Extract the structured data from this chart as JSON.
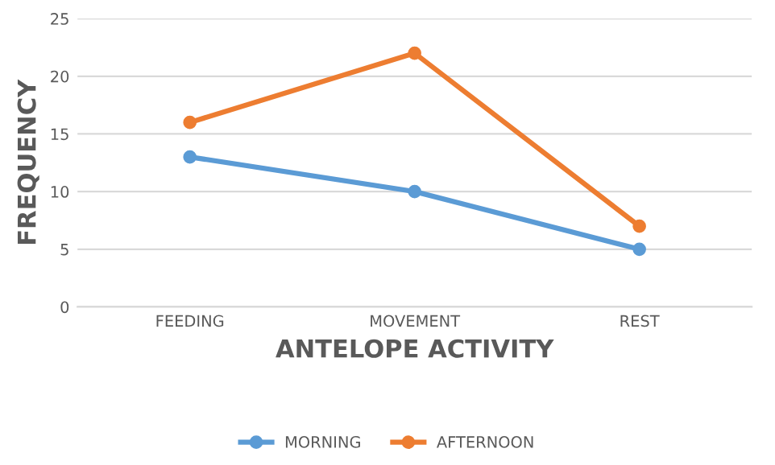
{
  "chart_data": {
    "type": "line",
    "xlabel": "ANTELOPE ACTIVITY",
    "ylabel": "FREQUENCY",
    "categories": [
      "FEEDING",
      "MOVEMENT",
      "REST"
    ],
    "series": [
      {
        "name": "MORNING",
        "color": "#5b9bd5",
        "values": [
          13,
          10,
          5
        ]
      },
      {
        "name": "AFTERNOON",
        "color": "#ed7d31",
        "values": [
          16,
          22,
          7
        ]
      }
    ],
    "ylim": [
      0,
      25
    ],
    "yticks": [
      0,
      5,
      10,
      15,
      20,
      25
    ],
    "grid": "y",
    "legend": "bottom",
    "marker": "circle",
    "line_style": "solid"
  }
}
